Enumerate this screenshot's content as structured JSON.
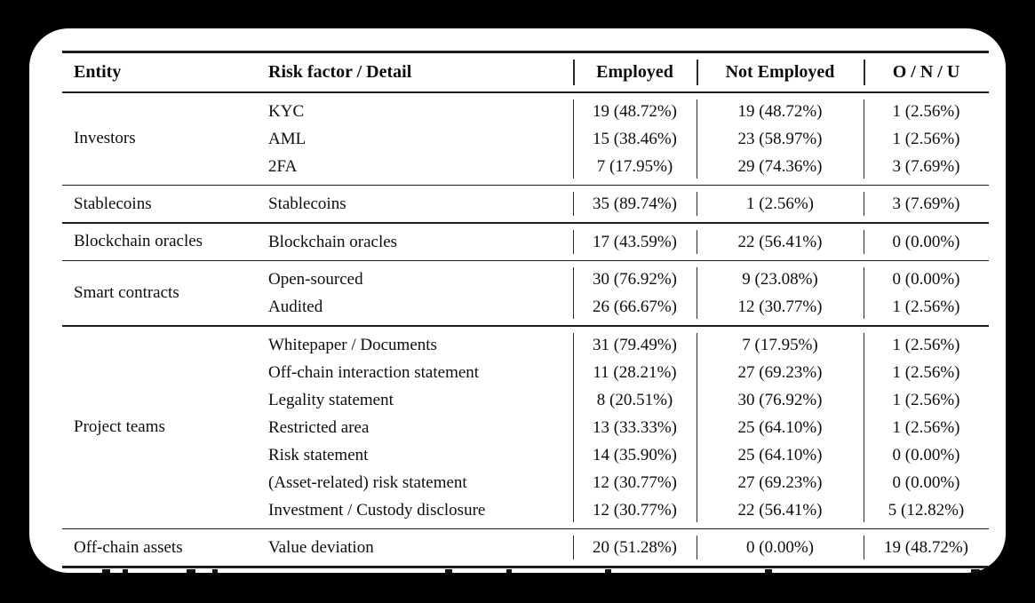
{
  "colors": {
    "page_background": "#000000",
    "card_background": "#ffffff",
    "text": "#0d0d0d",
    "rule": "#1c1c1c"
  },
  "table": {
    "columns": [
      "Entity",
      "Risk factor / Detail",
      "Employed",
      "Not Employed",
      "O / N / U"
    ],
    "groups": [
      {
        "entity": "Investors",
        "rows": [
          [
            "KYC",
            "19 (48.72%)",
            "19 (48.72%)",
            "1 (2.56%)"
          ],
          [
            "AML",
            "15 (38.46%)",
            "23 (58.97%)",
            "1 (2.56%)"
          ],
          [
            "2FA",
            "7 (17.95%)",
            "29 (74.36%)",
            "3 (7.69%)"
          ]
        ]
      },
      {
        "entity": "Stablecoins",
        "rows": [
          [
            "Stablecoins",
            "35 (89.74%)",
            "1 (2.56%)",
            "3 (7.69%)"
          ]
        ]
      },
      {
        "entity": "Blockchain oracles",
        "rows": [
          [
            "Blockchain oracles",
            "17 (43.59%)",
            "22 (56.41%)",
            "0 (0.00%)"
          ]
        ]
      },
      {
        "entity": "Smart contracts",
        "rows": [
          [
            "Open-sourced",
            "30 (76.92%)",
            "9 (23.08%)",
            "0 (0.00%)"
          ],
          [
            "Audited",
            "26 (66.67%)",
            "12 (30.77%)",
            "1 (2.56%)"
          ]
        ]
      },
      {
        "entity": "Project teams",
        "rows": [
          [
            "Whitepaper / Documents",
            "31 (79.49%)",
            "7 (17.95%)",
            "1 (2.56%)"
          ],
          [
            "Off-chain interaction statement",
            "11 (28.21%)",
            "27 (69.23%)",
            "1 (2.56%)"
          ],
          [
            "Legality statement",
            "8 (20.51%)",
            "30 (76.92%)",
            "1 (2.56%)"
          ],
          [
            "Restricted area",
            "13 (33.33%)",
            "25 (64.10%)",
            "1 (2.56%)"
          ],
          [
            "Risk statement",
            "14 (35.90%)",
            "25 (64.10%)",
            "0 (0.00%)"
          ],
          [
            "(Asset-related) risk statement",
            "12 (30.77%)",
            "27 (69.23%)",
            "0 (0.00%)"
          ],
          [
            "Investment / Custody disclosure",
            "12 (30.77%)",
            "22 (56.41%)",
            "5 (12.82%)"
          ]
        ]
      },
      {
        "entity": "Off-chain assets",
        "rows": [
          [
            "Value deviation",
            "20 (51.28%)",
            "0 (0.00%)",
            "19 (48.72%)"
          ]
        ]
      }
    ]
  }
}
